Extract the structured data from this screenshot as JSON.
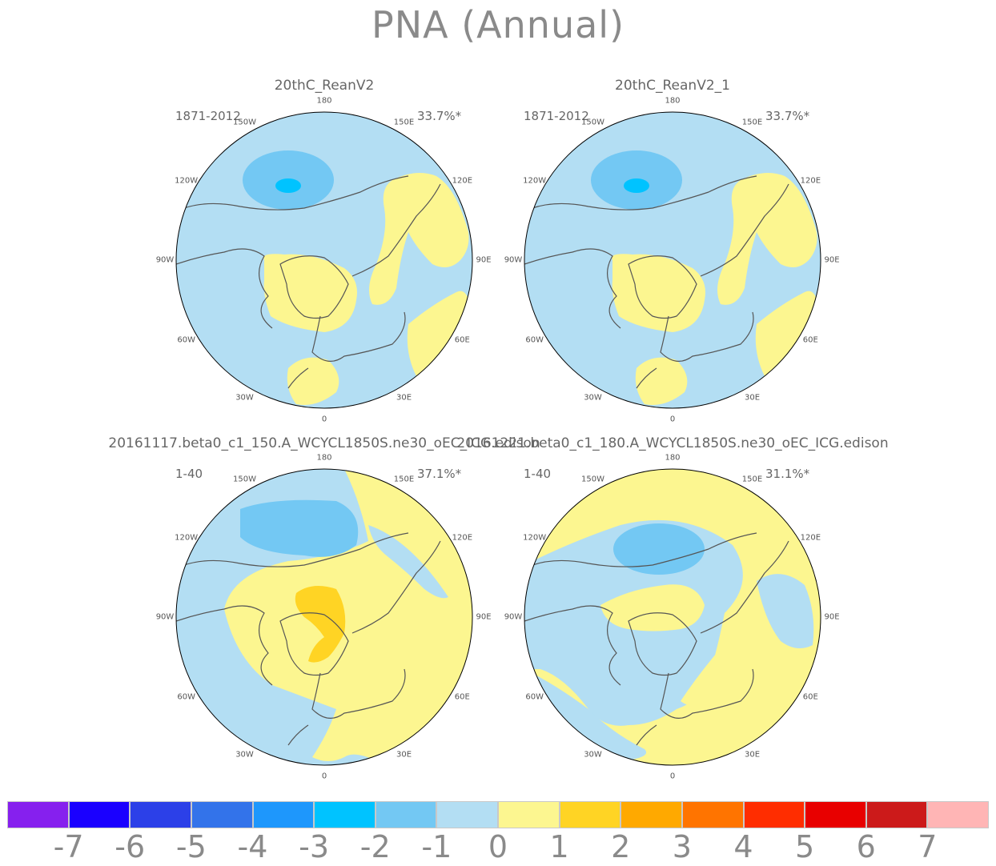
{
  "title": "PNA (Annual)",
  "panels": [
    {
      "title": "20thC_ReanV2",
      "period": "1871-2012",
      "pct": "33.7%*"
    },
    {
      "title": "20thC_ReanV2_1",
      "period": "1871-2012",
      "pct": "33.7%*"
    },
    {
      "title": "20161117.beta0_c1_150.A_WCYCL1850S.ne30_oEC_ICG.edison",
      "period": "1-40",
      "pct": "37.1%*"
    },
    {
      "title": "20161221.beta0_c1_180.A_WCYCL1850S.ne30_oEC_ICG.edison",
      "period": "1-40",
      "pct": "31.1%*"
    }
  ],
  "longitude_labels": [
    "180",
    "150E",
    "120E",
    "90E",
    "60E",
    "30E",
    "0",
    "30W",
    "60W",
    "90W",
    "120W",
    "150W"
  ],
  "colorbar": {
    "colors": [
      "#8620ee",
      "#1a00ff",
      "#2c40e8",
      "#3373ea",
      "#1e97fc",
      "#00c3ff",
      "#73c8f3",
      "#b3def3",
      "#fcf690",
      "#ffd424",
      "#ffa900",
      "#ff7400",
      "#ff2d00",
      "#e80000",
      "#cc1a1a",
      "#ffb5b5"
    ],
    "labels": [
      "-7",
      "-6",
      "-5",
      "-4",
      "-3",
      "-2",
      "-1",
      "0",
      "1",
      "2",
      "3",
      "4",
      "5",
      "6",
      "7"
    ]
  },
  "palette": {
    "neg1": "#b3def3",
    "neg2": "#73c8f3",
    "neg3": "#00c3ff",
    "pos1": "#fcf690",
    "pos2": "#ffd424",
    "coast": "#555555"
  }
}
